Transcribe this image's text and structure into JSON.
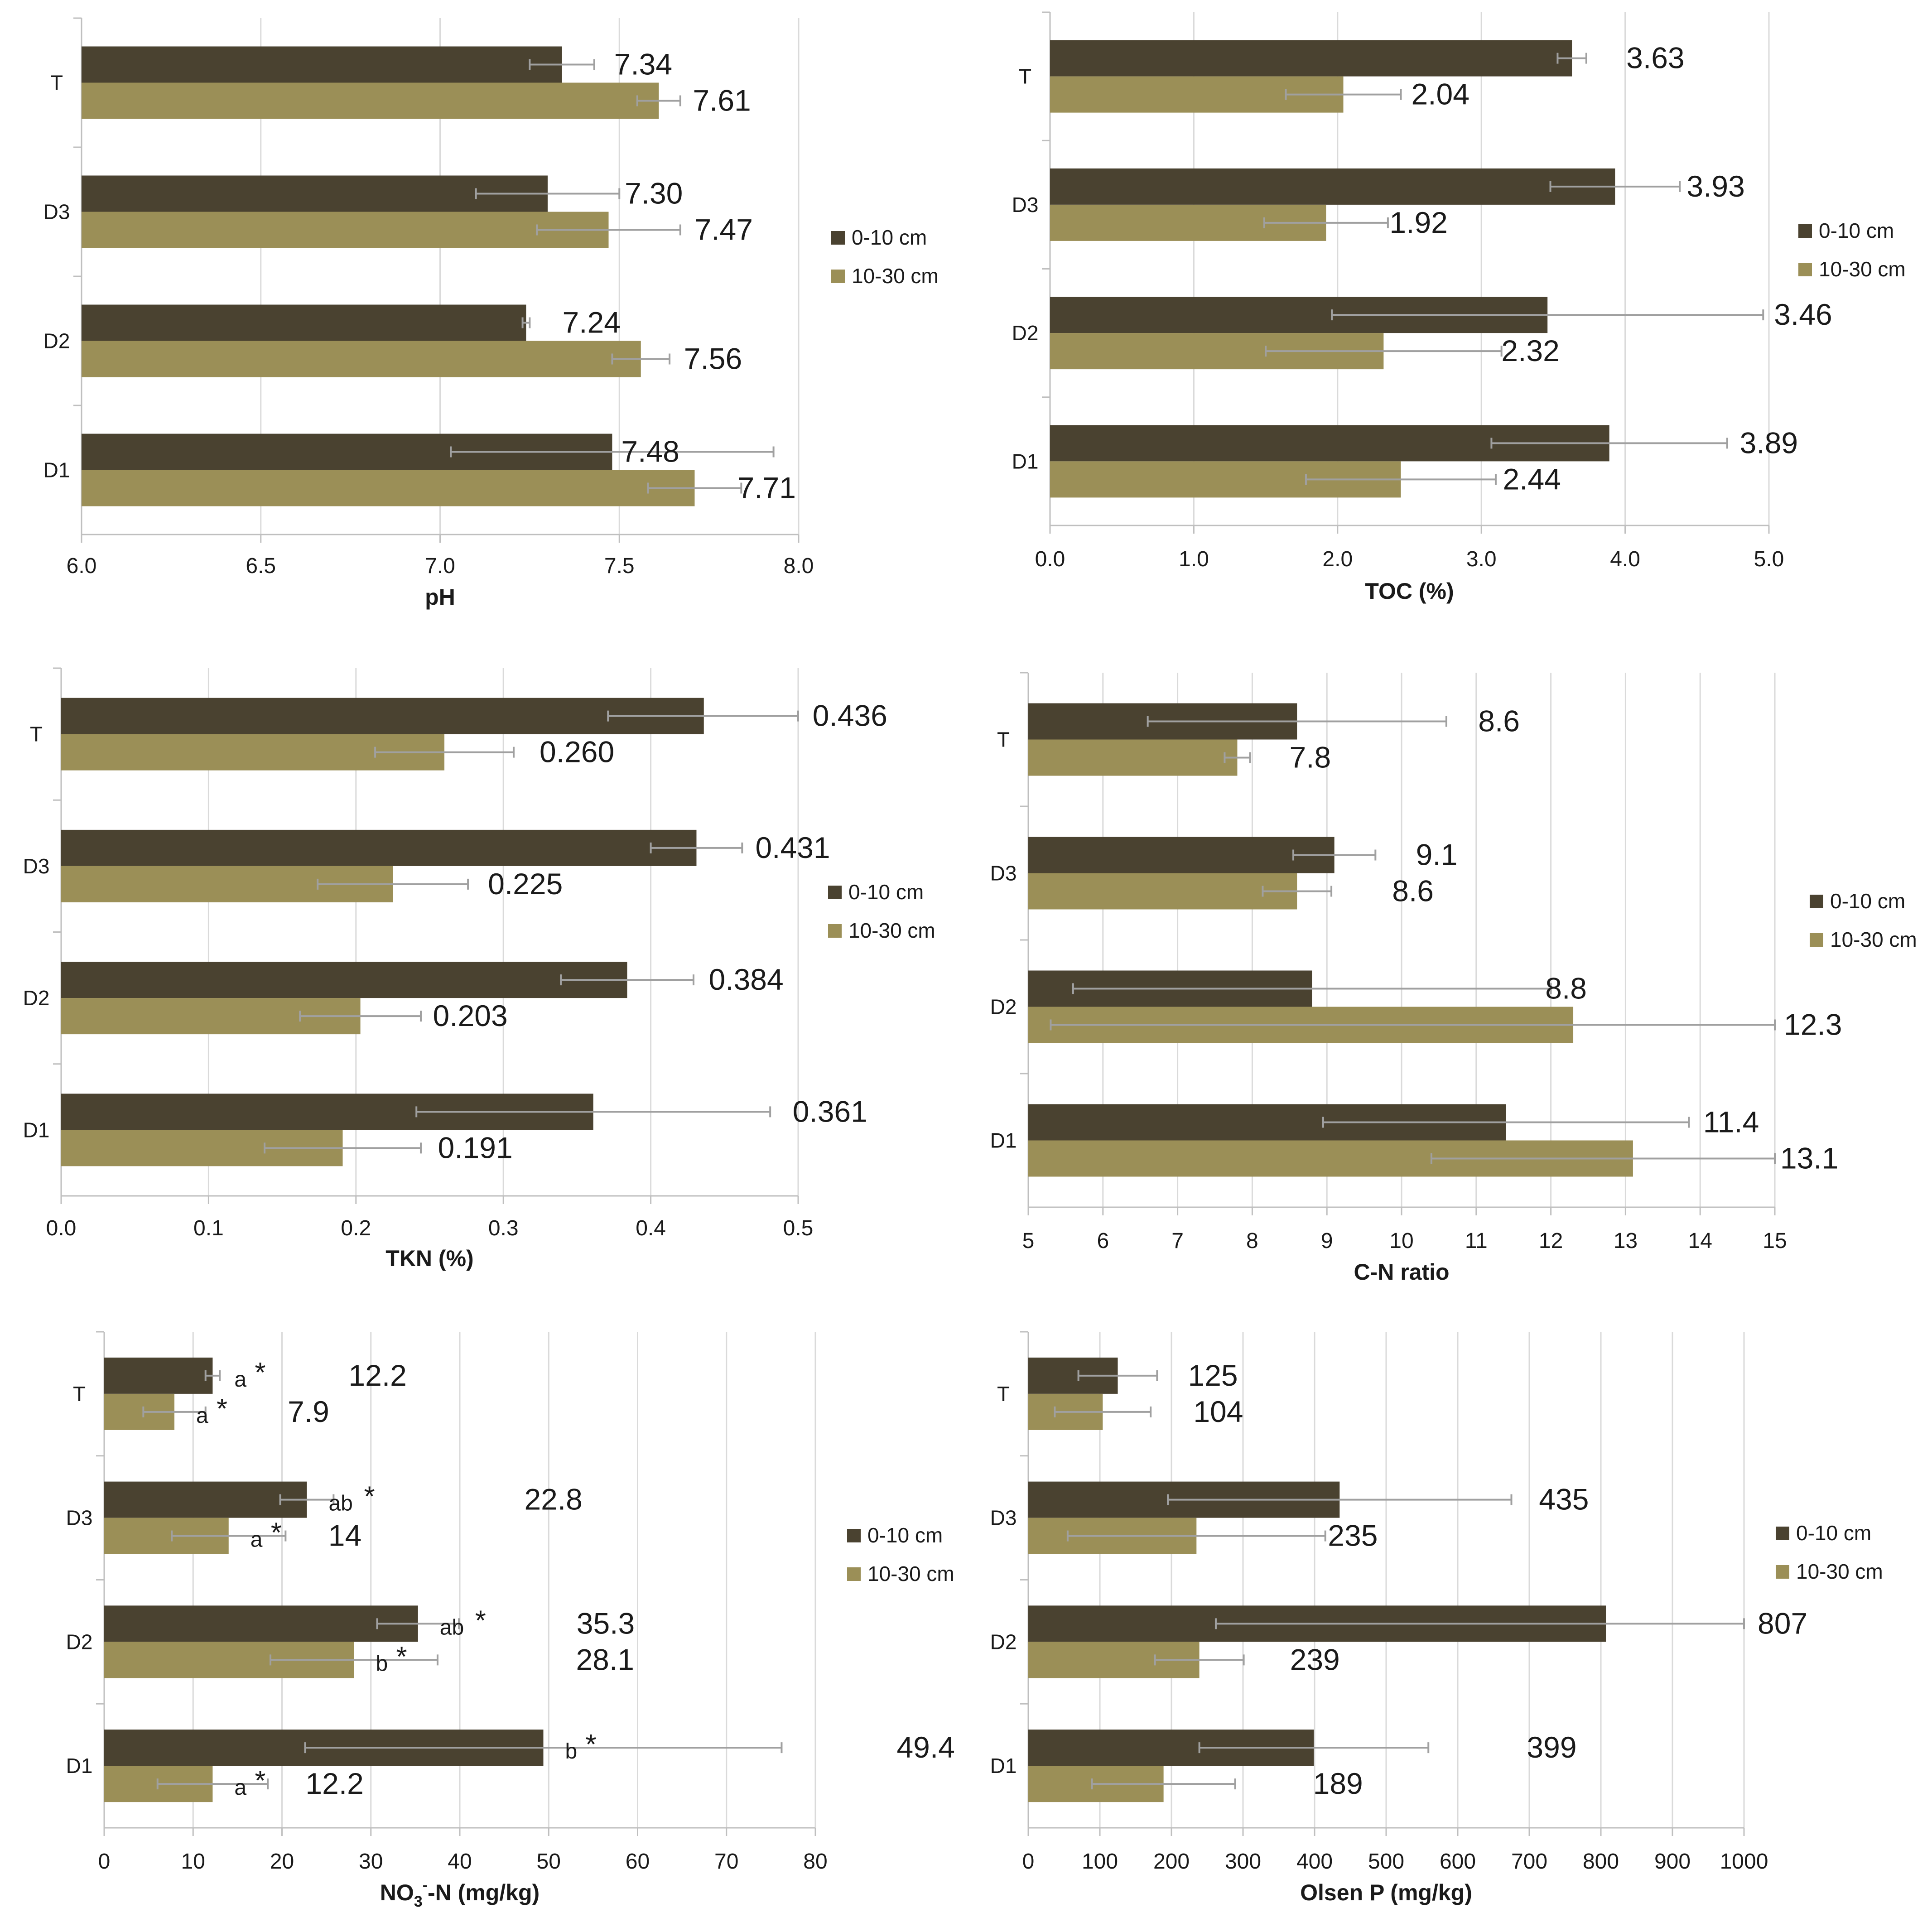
{
  "colors": {
    "series_0_10": "#4a4230",
    "series_10_30": "#9b8f57",
    "grid": "#dadada",
    "axis": "#bfbfbf",
    "errorbar": "#a0a0a0",
    "text": "#1a1a1a"
  },
  "legend": {
    "series_0_10": "0-10 cm",
    "series_10_30": "10-30 cm"
  },
  "chart_data": [
    {
      "type": "bar",
      "orientation": "horizontal",
      "xlabel": "pH",
      "xlim": [
        6.0,
        8.0
      ],
      "xticks": [
        "6.0",
        "6.5",
        "7.0",
        "7.5",
        "8.0"
      ],
      "categories": [
        "T",
        "D3",
        "D2",
        "D1"
      ],
      "series": [
        {
          "name": "0-10 cm",
          "values": [
            7.34,
            7.3,
            7.24,
            7.48
          ],
          "labels": [
            "7.34",
            "7.30",
            "7.24",
            "7.48"
          ],
          "errors": [
            0.09,
            0.2,
            0.01,
            0.45
          ]
        },
        {
          "name": "10-30 cm",
          "values": [
            7.61,
            7.47,
            7.56,
            7.71
          ],
          "labels": [
            "7.61",
            "7.47",
            "7.56",
            "7.71"
          ],
          "errors": [
            0.06,
            0.2,
            0.08,
            0.13
          ]
        }
      ]
    },
    {
      "type": "bar",
      "orientation": "horizontal",
      "xlabel": "TOC (%)",
      "xlim": [
        0,
        5
      ],
      "xticks": [
        "0.0",
        "1.0",
        "2.0",
        "3.0",
        "4.0",
        "5.0"
      ],
      "categories": [
        "T",
        "D3",
        "D2",
        "D1"
      ],
      "series": [
        {
          "name": "0-10 cm",
          "values": [
            3.63,
            3.93,
            3.46,
            3.89
          ],
          "labels": [
            "3.63",
            "3.93",
            "3.46",
            "3.89"
          ],
          "errors": [
            0.1,
            0.45,
            1.5,
            0.82
          ]
        },
        {
          "name": "10-30 cm",
          "values": [
            2.04,
            1.92,
            2.32,
            2.44
          ],
          "labels": [
            "2.04",
            "1.92",
            "2.32",
            "2.44"
          ],
          "errors": [
            0.4,
            0.43,
            0.82,
            0.66
          ]
        }
      ]
    },
    {
      "type": "bar",
      "orientation": "horizontal",
      "xlabel": "TKN (%)",
      "xlim": [
        0,
        0.5
      ],
      "xticks": [
        "0.0",
        "0.1",
        "0.2",
        "0.3",
        "0.4",
        "0.5"
      ],
      "categories": [
        "T",
        "D3",
        "D2",
        "D1"
      ],
      "series": [
        {
          "name": "0-10 cm",
          "values": [
            0.436,
            0.431,
            0.384,
            0.361
          ],
          "labels": [
            "0.436",
            "0.431",
            "0.384",
            "0.361"
          ],
          "errors": [
            0.065,
            0.031,
            0.045,
            0.12
          ]
        },
        {
          "name": "10-30 cm",
          "values": [
            0.26,
            0.225,
            0.203,
            0.191
          ],
          "labels": [
            "0.260",
            "0.225",
            "0.203",
            "0.191"
          ],
          "errors": [
            0.047,
            0.051,
            0.041,
            0.053
          ]
        }
      ]
    },
    {
      "type": "bar",
      "orientation": "horizontal",
      "xlabel": "C-N ratio",
      "xlim": [
        5,
        15
      ],
      "xticks": [
        "5",
        "6",
        "7",
        "8",
        "9",
        "10",
        "11",
        "12",
        "13",
        "14",
        "15"
      ],
      "categories": [
        "T",
        "D3",
        "D2",
        "D1"
      ],
      "series": [
        {
          "name": "0-10 cm",
          "values": [
            8.6,
            9.1,
            8.8,
            11.4
          ],
          "labels": [
            "8.6",
            "9.1",
            "8.8",
            "11.4"
          ],
          "errors": [
            2.0,
            0.55,
            3.2,
            2.45
          ]
        },
        {
          "name": "10-30 cm",
          "values": [
            7.8,
            8.6,
            12.3,
            13.1
          ],
          "labels": [
            "7.8",
            "8.6",
            "12.3",
            "13.1"
          ],
          "errors": [
            0.17,
            0.46,
            7.0,
            2.7
          ]
        }
      ]
    },
    {
      "type": "bar",
      "orientation": "horizontal",
      "xlabel": "NO3--N (mg/kg)",
      "xlabel_parts": [
        "NO",
        "3",
        "-",
        "-N (mg/kg)"
      ],
      "xlim": [
        0,
        80
      ],
      "xticks": [
        "0",
        "10",
        "20",
        "30",
        "40",
        "50",
        "60",
        "70",
        "80"
      ],
      "categories": [
        "T",
        "D3",
        "D2",
        "D1"
      ],
      "series": [
        {
          "name": "0-10 cm",
          "values": [
            12.2,
            22.8,
            35.3,
            49.4
          ],
          "labels": [
            "12.2",
            "22.8",
            "35.3",
            "49.4"
          ],
          "errors": [
            0.8,
            3.0,
            4.6,
            26.8
          ],
          "annotations": [
            "a",
            "ab",
            "ab",
            "b"
          ]
        },
        {
          "name": "10-30 cm",
          "values": [
            7.9,
            14,
            28.1,
            12.2
          ],
          "labels": [
            "7.9",
            "14",
            "28.1",
            "12.2"
          ],
          "errors": [
            3.5,
            6.4,
            9.4,
            6.2
          ],
          "annotations": [
            "a",
            "a",
            "b",
            "a"
          ]
        }
      ],
      "significance_marker": "*"
    },
    {
      "type": "bar",
      "orientation": "horizontal",
      "xlabel": "Olsen P (mg/kg)",
      "xlim": [
        0,
        1000
      ],
      "xticks": [
        "0",
        "100",
        "200",
        "300",
        "400",
        "500",
        "600",
        "700",
        "800",
        "900",
        "1000"
      ],
      "categories": [
        "T",
        "D3",
        "D2",
        "D1"
      ],
      "series": [
        {
          "name": "0-10 cm",
          "values": [
            125,
            435,
            807,
            399
          ],
          "labels": [
            "125",
            "435",
            "807",
            "399"
          ],
          "errors": [
            55,
            240,
            545,
            160
          ]
        },
        {
          "name": "10-30 cm",
          "values": [
            104,
            235,
            239,
            189
          ],
          "labels": [
            "104",
            "235",
            "239",
            "189"
          ],
          "errors": [
            67,
            180,
            62,
            100
          ]
        }
      ]
    }
  ]
}
